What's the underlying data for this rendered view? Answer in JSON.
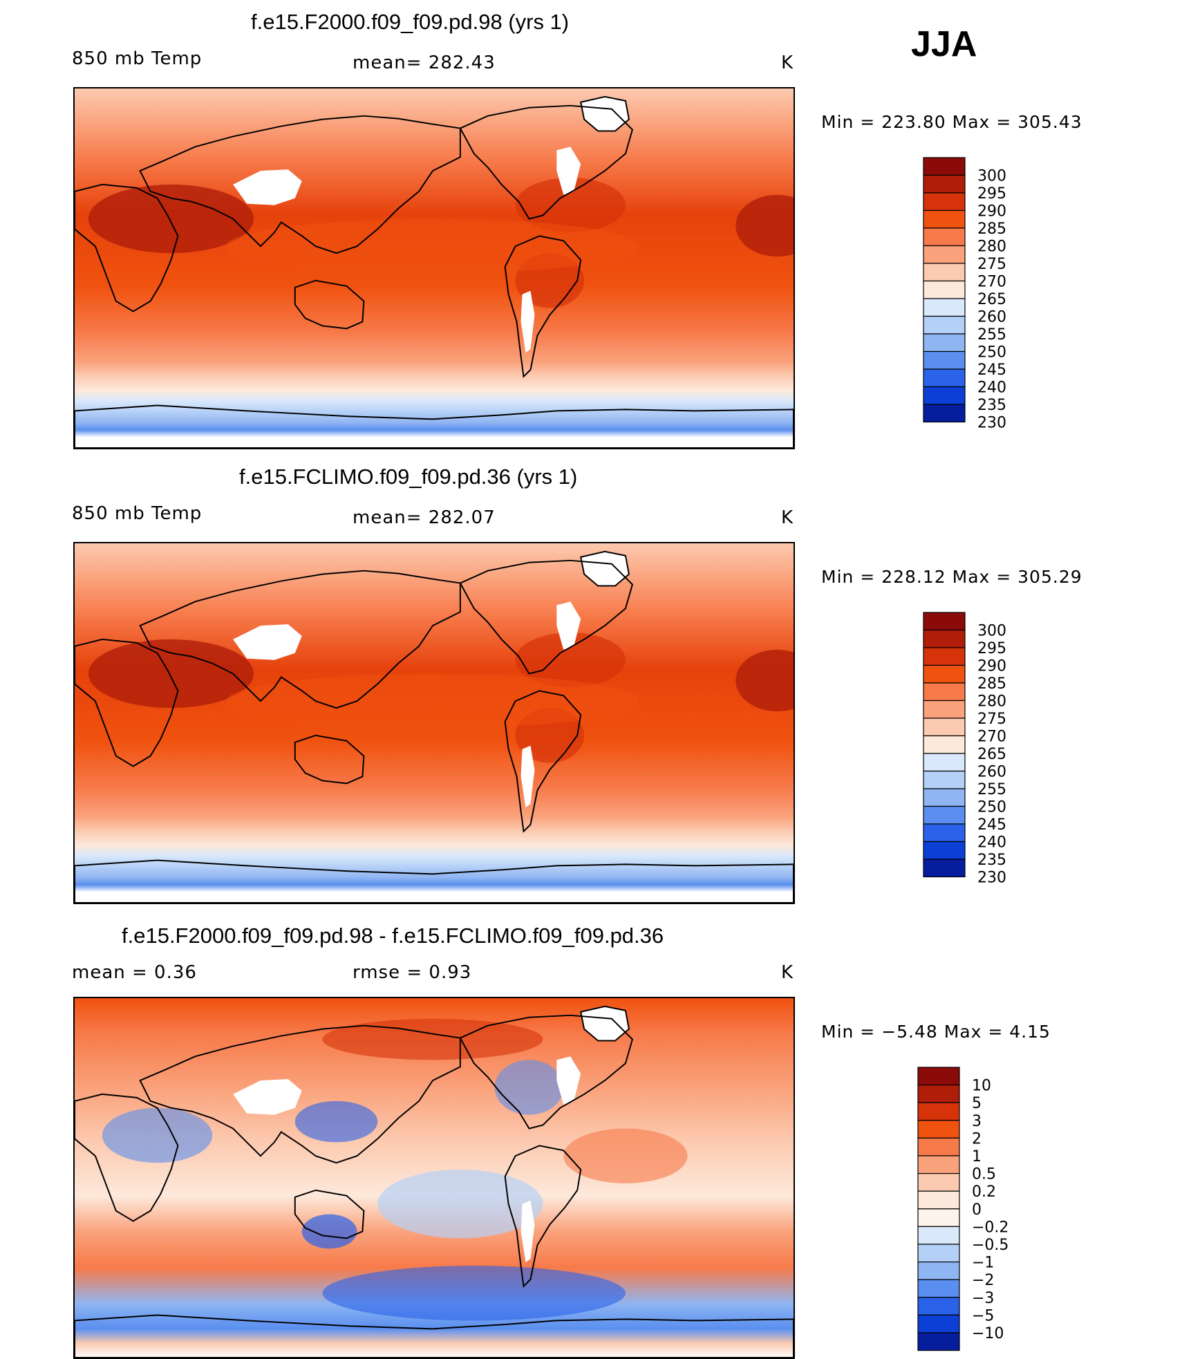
{
  "season": "JJA",
  "panels": [
    {
      "id": "top",
      "title": "f.e15.F2000.f09_f09.pd.98 (yrs 1)",
      "left_label": "850 mb Temp",
      "center_label": "mean=  282.43",
      "units": "K",
      "minmax": "Min  =  223.80  Max  =  305.43"
    },
    {
      "id": "mid",
      "title": "f.e15.FCLIMO.f09_f09.pd.36 (yrs 1)",
      "left_label": "850 mb Temp",
      "center_label": "mean=  282.07",
      "units": "K",
      "minmax": "Min  =  228.12  Max  =  305.29"
    },
    {
      "id": "diff",
      "title": "f.e15.F2000.f09_f09.pd.98 - f.e15.FCLIMO.f09_f09.pd.36",
      "left_label": "mean  =     0.36",
      "center_label": "rmse  =     0.93",
      "units": "K",
      "minmax": "Min  =    −5.48  Max  =      4.15"
    }
  ],
  "chart_data": [
    {
      "type": "heatmap",
      "title": "f.e15.F2000.f09_f09.pd.98 (yrs 1)",
      "variable": "850 mb Temp",
      "units": "K",
      "mean": 282.43,
      "min": 223.8,
      "max": 305.43,
      "colorbar_levels": [
        "300",
        "295",
        "290",
        "285",
        "280",
        "275",
        "270",
        "265",
        "260",
        "255",
        "250",
        "245",
        "240",
        "235",
        "230"
      ],
      "colorbar_colors": [
        "#8b0a0a",
        "#b01e0a",
        "#d6330a",
        "#f0520f",
        "#f77a4a",
        "#faa27c",
        "#fccab0",
        "#fde9db",
        "#d9e8fb",
        "#b5d0f7",
        "#8fb5f2",
        "#5a8fef",
        "#2a63ea",
        "#0c3fd6",
        "#061e9e"
      ]
    },
    {
      "type": "heatmap",
      "title": "f.e15.FCLIMO.f09_f09.pd.36 (yrs 1)",
      "variable": "850 mb Temp",
      "units": "K",
      "mean": 282.07,
      "min": 228.12,
      "max": 305.29,
      "colorbar_levels": [
        "300",
        "295",
        "290",
        "285",
        "280",
        "275",
        "270",
        "265",
        "260",
        "255",
        "250",
        "245",
        "240",
        "235",
        "230"
      ],
      "colorbar_colors": [
        "#8b0a0a",
        "#b01e0a",
        "#d6330a",
        "#f0520f",
        "#f77a4a",
        "#faa27c",
        "#fccab0",
        "#fde9db",
        "#d9e8fb",
        "#b5d0f7",
        "#8fb5f2",
        "#5a8fef",
        "#2a63ea",
        "#0c3fd6",
        "#061e9e"
      ]
    },
    {
      "type": "heatmap",
      "title": "f.e15.F2000.f09_f09.pd.98 - f.e15.FCLIMO.f09_f09.pd.36",
      "units": "K",
      "mean": 0.36,
      "rmse": 0.93,
      "min": -5.48,
      "max": 4.15,
      "colorbar_levels": [
        "10",
        "5",
        "3",
        "2",
        "1",
        "0.5",
        "0.2",
        "0",
        "−0.2",
        "−0.5",
        "−1",
        "−2",
        "−3",
        "−5",
        "−10"
      ],
      "colorbar_colors": [
        "#8b0a0a",
        "#b01e0a",
        "#d6330a",
        "#f0520f",
        "#f77a4a",
        "#faa27c",
        "#fccab0",
        "#fde9db",
        "#fdf3ea",
        "#d9e8fb",
        "#b5d0f7",
        "#8fb5f2",
        "#5a8fef",
        "#2a63ea",
        "#0c3fd6",
        "#061e9e"
      ]
    }
  ]
}
